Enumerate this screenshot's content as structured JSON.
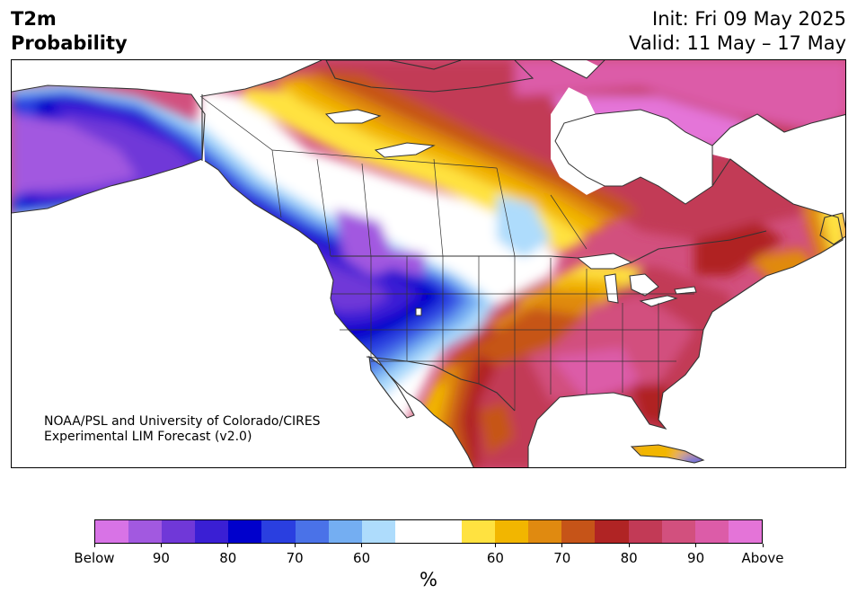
{
  "header": {
    "title_line1": "T2m",
    "title_line2": "Probability",
    "init_text": "Init: Fri 09 May 2025",
    "valid_text": "Valid: 11 May – 17 May"
  },
  "credit": {
    "line1": "NOAA/PSL and University of Colorado/CIRES",
    "line2": "Experimental LIM Forecast (v2.0)"
  },
  "colorbar": {
    "units": "%",
    "colors": [
      "#d873e6",
      "#a259e0",
      "#7038d8",
      "#3a1fd4",
      "#0000cc",
      "#2a3fe0",
      "#4a72e8",
      "#74aef2",
      "#aedcfc",
      "#ffffff",
      "#ffffff",
      "#ffe240",
      "#f2b600",
      "#e08a10",
      "#c65418",
      "#b02424",
      "#c23a56",
      "#d2507e",
      "#dc5ca8",
      "#e474d8"
    ],
    "tick_labels": [
      "Below",
      "90",
      "80",
      "70",
      "60",
      "60",
      "70",
      "80",
      "90",
      "Above"
    ]
  },
  "map": {
    "land_color": "#ffffff",
    "border_color": "#333333"
  }
}
